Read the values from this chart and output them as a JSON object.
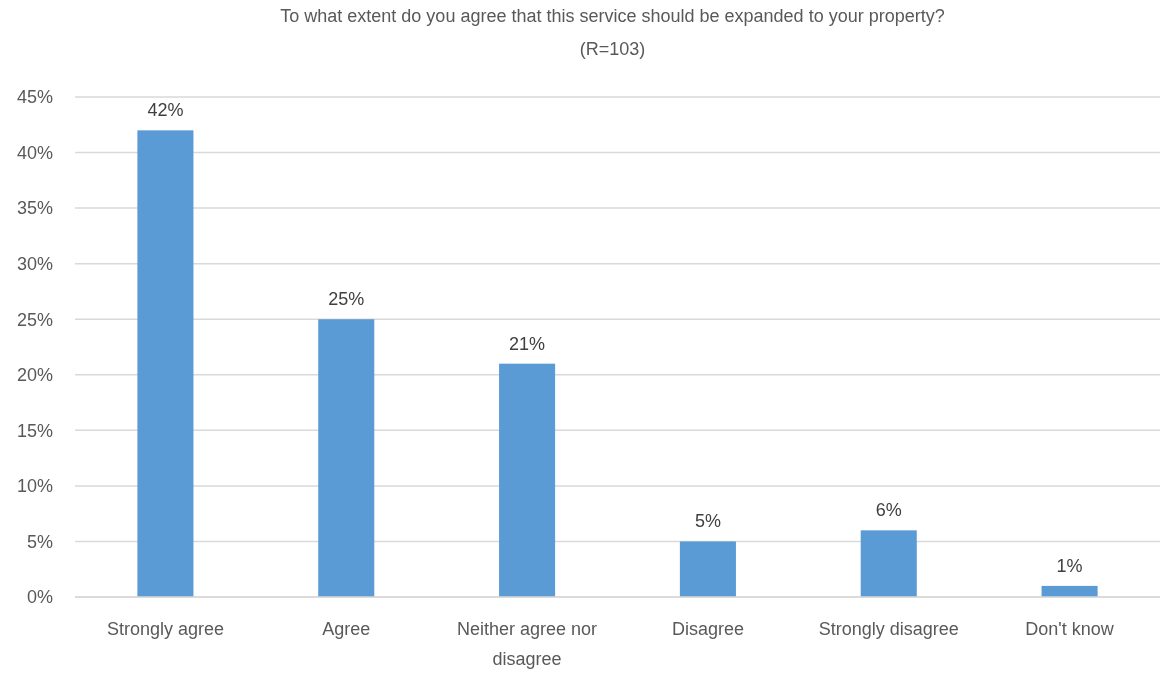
{
  "chart_data": {
    "type": "bar",
    "title": "To what extent do you agree that this service should be expanded to your property?",
    "subtitle": "(R=103)",
    "categories": [
      "Strongly agree",
      "Agree",
      "Neither agree nor disagree",
      "Disagree",
      "Strongly disagree",
      "Don't know"
    ],
    "values": [
      42,
      25,
      21,
      5,
      6,
      1
    ],
    "value_labels": [
      "42%",
      "25%",
      "21%",
      "5%",
      "6%",
      "1%"
    ],
    "color": "#5b9bd5",
    "ylim": [
      0,
      45
    ],
    "yticks": [
      {
        "value": 0,
        "label": "0%"
      },
      {
        "value": 5,
        "label": "5%"
      },
      {
        "value": 10,
        "label": "10%"
      },
      {
        "value": 15,
        "label": "15%"
      },
      {
        "value": 20,
        "label": "20%"
      },
      {
        "value": 25,
        "label": "25%"
      },
      {
        "value": 30,
        "label": "30%"
      },
      {
        "value": 35,
        "label": "35%"
      },
      {
        "value": 40,
        "label": "40%"
      },
      {
        "value": 45,
        "label": "45%"
      }
    ],
    "grid": "y"
  }
}
